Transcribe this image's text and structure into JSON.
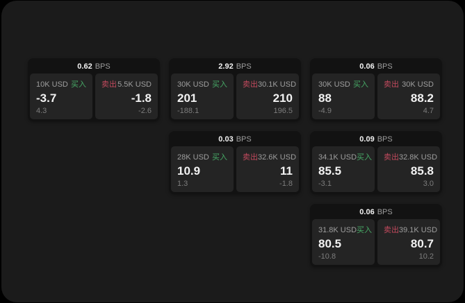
{
  "labels": {
    "buy": "买入",
    "sell": "卖出",
    "bps_unit": "BPS"
  },
  "colors": {
    "background": "#000000",
    "screen": "#1b1b1b",
    "card": "#121212",
    "panel": "#242424",
    "value_text": "#f2f2f2",
    "muted_text": "#9e9e9e",
    "sub_text": "#7d7d7d",
    "buy_green": "#47a966",
    "sell_red": "#c34a5e"
  },
  "cards": [
    {
      "row": 1,
      "col": 1,
      "bps": "0.62",
      "buy": {
        "amount": "10K USD",
        "value": "-3.7",
        "sub": "4.3"
      },
      "sell": {
        "amount": "5.5K USD",
        "value": "-1.8",
        "sub": "-2.6"
      }
    },
    {
      "row": 1,
      "col": 2,
      "bps": "2.92",
      "buy": {
        "amount": "30K USD",
        "value": "201",
        "sub": "-188.1"
      },
      "sell": {
        "amount": "30.1K USD",
        "value": "210",
        "sub": "196.5"
      }
    },
    {
      "row": 1,
      "col": 3,
      "bps": "0.06",
      "buy": {
        "amount": "30K USD",
        "value": "88",
        "sub": "-4.9"
      },
      "sell": {
        "amount": "30K USD",
        "value": "88.2",
        "sub": "4.7"
      }
    },
    {
      "row": 2,
      "col": 2,
      "bps": "0.03",
      "buy": {
        "amount": "28K USD",
        "value": "10.9",
        "sub": "1.3"
      },
      "sell": {
        "amount": "32.6K USD",
        "value": "11",
        "sub": "-1.8"
      }
    },
    {
      "row": 2,
      "col": 3,
      "bps": "0.09",
      "buy": {
        "amount": "34.1K USD",
        "value": "85.5",
        "sub": "-3.1"
      },
      "sell": {
        "amount": "32.8K USD",
        "value": "85.8",
        "sub": "3.0"
      }
    },
    {
      "row": 3,
      "col": 3,
      "bps": "0.06",
      "buy": {
        "amount": "31.8K USD",
        "value": "80.5",
        "sub": "-10.8"
      },
      "sell": {
        "amount": "39.1K USD",
        "value": "80.7",
        "sub": "10.2"
      }
    }
  ]
}
